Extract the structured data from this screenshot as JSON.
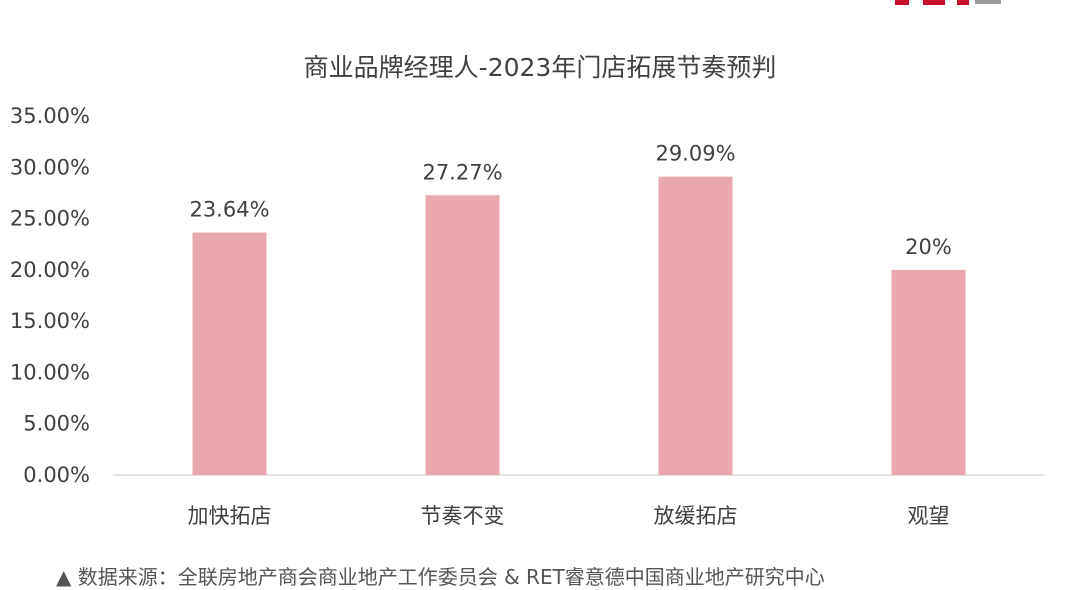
{
  "chart_data": {
    "type": "bar",
    "title": "商业品牌经理人-2023年门店拓展节奏预判",
    "categories": [
      "加快拓店",
      "节奏不变",
      "放缓拓店",
      "观望"
    ],
    "values": [
      23.64,
      27.27,
      29.09,
      20
    ],
    "data_labels": [
      "23.64%",
      "27.27%",
      "29.09%",
      "20%"
    ],
    "ylim": [
      0,
      35
    ],
    "yticks": [
      0,
      5,
      10,
      15,
      20,
      25,
      30,
      35
    ],
    "ytick_labels": [
      "0.00%",
      "5.00%",
      "10.00%",
      "15.00%",
      "20.00%",
      "25.00%",
      "30.00%",
      "35.00%"
    ],
    "xlabel": "",
    "ylabel": "",
    "grid": false,
    "bar_color": "#e8a8ad"
  },
  "source_note": "▲ 数据来源：全联房地产商会商业地产工作委员会 & RET睿意德中国商业地产研究中心",
  "logo_colors": {
    "red": "#c8102e",
    "grey": "#9a9a9a"
  }
}
